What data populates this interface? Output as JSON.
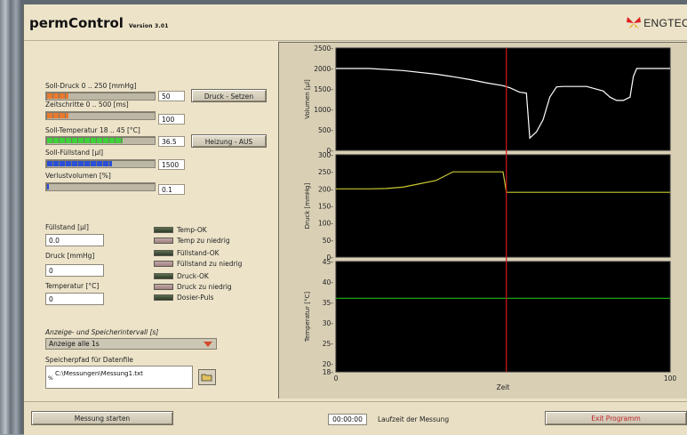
{
  "app": {
    "title": "permControl",
    "version": "Version 3.01",
    "logo_text": "ENGTEC"
  },
  "controls": {
    "soll_druck": {
      "label": "Soll-Druck 0 .. 250 [mmHg]",
      "value": "50",
      "fill": 0.2,
      "color": "#e87a2e"
    },
    "zeitschritte": {
      "label": "Zeitschritte 0 .. 500 [ms]",
      "value": "100",
      "fill": 0.2,
      "color": "#e87a2e"
    },
    "soll_temperatur": {
      "label": "Soll-Temperatur 18 .. 45 [°C]",
      "value": "36.5",
      "fill": 0.7,
      "color": "#3fd13a"
    },
    "soll_fuellstand": {
      "label": "Soll-Füllstand [µl]",
      "value": "1500",
      "fill": 0.6,
      "color": "#2a4fd8"
    },
    "verlustvolumen": {
      "label": "Verlustvolumen [%]",
      "value": "0.1",
      "fill": 0.01,
      "color": "#2a4fd8"
    },
    "druck_setzen_label": "Druck - Setzen",
    "heizung_label": "Heizung - AUS"
  },
  "readouts": {
    "fuellstand": {
      "label": "Füllstand [µl]",
      "value": "0.0"
    },
    "druck": {
      "label": "Druck [mmHg]",
      "value": "0"
    },
    "temperatur": {
      "label": "Temperatur [°C]",
      "value": "0"
    }
  },
  "indicators": [
    {
      "label": "Temp-OK",
      "state": "on"
    },
    {
      "label": "Temp zu niedrig",
      "state": "off"
    },
    {
      "label": "Füllstand-OK",
      "state": "on"
    },
    {
      "label": "Füllstand zu niedrig",
      "state": "off"
    },
    {
      "label": "Druck-OK",
      "state": "on"
    },
    {
      "label": "Druck zu niedrig",
      "state": "off"
    },
    {
      "label": "Dosier-Puls",
      "state": "on"
    }
  ],
  "interval": {
    "label": "Anzeige- und Speicherintervall [s]",
    "selected": "Anzeige alle 1s"
  },
  "path": {
    "label": "Speicherpfad für Datenfile",
    "value": "C:\\Messungen\\Messung1.txt",
    "prefix": "%"
  },
  "bottom": {
    "start_label": "Messung starten",
    "time_value": "00:00:00",
    "time_label": "Laufzeit der Messung",
    "exit_label": "Exit Programm"
  },
  "chart_data": [
    {
      "type": "line",
      "ylabel": "Volumen [µl]",
      "ylim": [
        0,
        2500
      ],
      "yticks": [
        "2500-",
        "2000-",
        "1500-",
        "1000-",
        "500-",
        "0-"
      ],
      "color": "#ffffff",
      "series": [
        {
          "x": [
            0,
            10,
            20,
            30,
            35,
            40,
            45,
            50,
            52,
            55,
            57,
            58,
            60,
            62,
            64,
            66,
            68,
            70,
            75,
            80,
            82,
            84,
            86,
            88,
            89,
            90,
            100
          ],
          "values": [
            2000,
            2000,
            1950,
            1860,
            1800,
            1730,
            1650,
            1580,
            1530,
            1420,
            1400,
            300,
            450,
            750,
            1300,
            1550,
            1560,
            1560,
            1560,
            1450,
            1300,
            1220,
            1220,
            1300,
            1800,
            2000,
            2000
          ]
        }
      ]
    },
    {
      "type": "line",
      "ylabel": "Druck [mmHg]",
      "ylim": [
        0,
        300
      ],
      "yticks": [
        "300-",
        "250-",
        "200-",
        "150-",
        "100-",
        "50-",
        "0-"
      ],
      "color": "#c8c832",
      "series": [
        {
          "x": [
            0,
            10,
            15,
            20,
            25,
            30,
            35,
            36,
            50,
            51,
            100
          ],
          "values": [
            200,
            200,
            201,
            205,
            215,
            225,
            250,
            250,
            250,
            190,
            190
          ]
        }
      ]
    },
    {
      "type": "line",
      "ylabel": "Temperatur [°C]",
      "ylim": [
        18,
        45
      ],
      "yticks": [
        "45-",
        "40-",
        "35-",
        "30-",
        "25-",
        "20-",
        "18-"
      ],
      "color": "#1db81d",
      "xlabel": "Zeit",
      "xticks": [
        "0",
        "100"
      ],
      "series": [
        {
          "x": [
            0,
            100
          ],
          "values": [
            36,
            36
          ]
        }
      ]
    }
  ],
  "cursor": {
    "x": 51
  }
}
